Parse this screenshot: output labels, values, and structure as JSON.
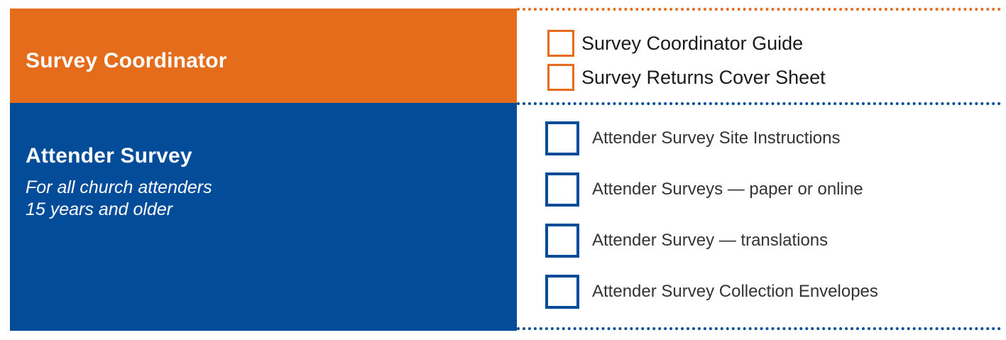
{
  "coordinator": {
    "title": "Survey Coordinator",
    "items": [
      {
        "label": "Survey Coordinator Guide"
      },
      {
        "label": "Survey Returns Cover Sheet"
      }
    ]
  },
  "attender": {
    "title": "Attender Survey",
    "subtitle_line1": "For all church attenders",
    "subtitle_line2": "15 years and older",
    "items": [
      {
        "label": "Attender Survey Site Instructions"
      },
      {
        "label": "Attender Surveys — paper or online"
      },
      {
        "label": "Attender Survey — translations"
      },
      {
        "label": "Attender Survey Collection Envelopes"
      }
    ]
  },
  "colors": {
    "orange": "#e46c1a",
    "blue": "#034c9a"
  }
}
